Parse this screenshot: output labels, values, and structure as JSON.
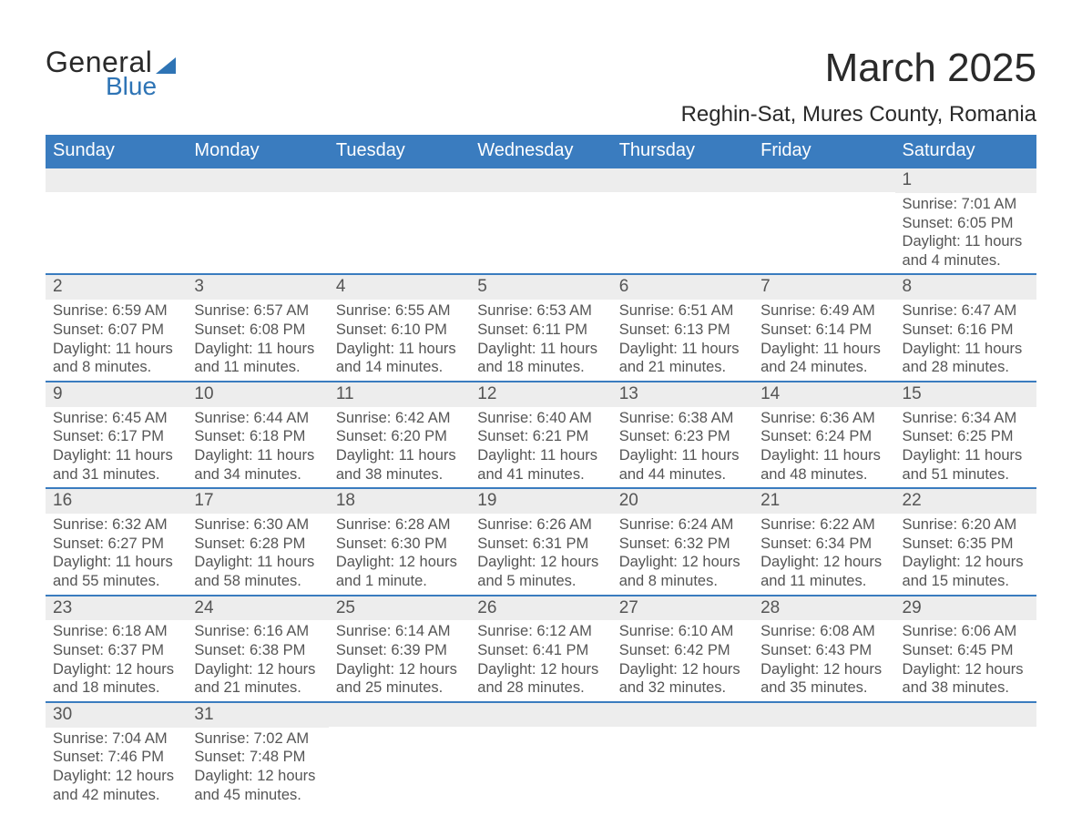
{
  "brand": {
    "word1": "General",
    "word2": "Blue",
    "accent_color": "#2e74b5"
  },
  "title": "March 2025",
  "location": "Reghin-Sat, Mures County, Romania",
  "colors": {
    "header_bg": "#3a7cbf",
    "header_text": "#ffffff",
    "daynum_bg": "#ededed",
    "body_text": "#555555",
    "row_divider": "#3a7cbf",
    "page_bg": "#ffffff"
  },
  "fonts": {
    "title_size_pt": 33,
    "location_size_pt": 18,
    "dayhead_size_pt": 15,
    "body_size_pt": 12.5
  },
  "day_headers": [
    "Sunday",
    "Monday",
    "Tuesday",
    "Wednesday",
    "Thursday",
    "Friday",
    "Saturday"
  ],
  "weeks": [
    [
      null,
      null,
      null,
      null,
      null,
      null,
      {
        "n": "1",
        "sunrise": "Sunrise: 7:01 AM",
        "sunset": "Sunset: 6:05 PM",
        "day1": "Daylight: 11 hours",
        "day2": "and 4 minutes."
      }
    ],
    [
      {
        "n": "2",
        "sunrise": "Sunrise: 6:59 AM",
        "sunset": "Sunset: 6:07 PM",
        "day1": "Daylight: 11 hours",
        "day2": "and 8 minutes."
      },
      {
        "n": "3",
        "sunrise": "Sunrise: 6:57 AM",
        "sunset": "Sunset: 6:08 PM",
        "day1": "Daylight: 11 hours",
        "day2": "and 11 minutes."
      },
      {
        "n": "4",
        "sunrise": "Sunrise: 6:55 AM",
        "sunset": "Sunset: 6:10 PM",
        "day1": "Daylight: 11 hours",
        "day2": "and 14 minutes."
      },
      {
        "n": "5",
        "sunrise": "Sunrise: 6:53 AM",
        "sunset": "Sunset: 6:11 PM",
        "day1": "Daylight: 11 hours",
        "day2": "and 18 minutes."
      },
      {
        "n": "6",
        "sunrise": "Sunrise: 6:51 AM",
        "sunset": "Sunset: 6:13 PM",
        "day1": "Daylight: 11 hours",
        "day2": "and 21 minutes."
      },
      {
        "n": "7",
        "sunrise": "Sunrise: 6:49 AM",
        "sunset": "Sunset: 6:14 PM",
        "day1": "Daylight: 11 hours",
        "day2": "and 24 minutes."
      },
      {
        "n": "8",
        "sunrise": "Sunrise: 6:47 AM",
        "sunset": "Sunset: 6:16 PM",
        "day1": "Daylight: 11 hours",
        "day2": "and 28 minutes."
      }
    ],
    [
      {
        "n": "9",
        "sunrise": "Sunrise: 6:45 AM",
        "sunset": "Sunset: 6:17 PM",
        "day1": "Daylight: 11 hours",
        "day2": "and 31 minutes."
      },
      {
        "n": "10",
        "sunrise": "Sunrise: 6:44 AM",
        "sunset": "Sunset: 6:18 PM",
        "day1": "Daylight: 11 hours",
        "day2": "and 34 minutes."
      },
      {
        "n": "11",
        "sunrise": "Sunrise: 6:42 AM",
        "sunset": "Sunset: 6:20 PM",
        "day1": "Daylight: 11 hours",
        "day2": "and 38 minutes."
      },
      {
        "n": "12",
        "sunrise": "Sunrise: 6:40 AM",
        "sunset": "Sunset: 6:21 PM",
        "day1": "Daylight: 11 hours",
        "day2": "and 41 minutes."
      },
      {
        "n": "13",
        "sunrise": "Sunrise: 6:38 AM",
        "sunset": "Sunset: 6:23 PM",
        "day1": "Daylight: 11 hours",
        "day2": "and 44 minutes."
      },
      {
        "n": "14",
        "sunrise": "Sunrise: 6:36 AM",
        "sunset": "Sunset: 6:24 PM",
        "day1": "Daylight: 11 hours",
        "day2": "and 48 minutes."
      },
      {
        "n": "15",
        "sunrise": "Sunrise: 6:34 AM",
        "sunset": "Sunset: 6:25 PM",
        "day1": "Daylight: 11 hours",
        "day2": "and 51 minutes."
      }
    ],
    [
      {
        "n": "16",
        "sunrise": "Sunrise: 6:32 AM",
        "sunset": "Sunset: 6:27 PM",
        "day1": "Daylight: 11 hours",
        "day2": "and 55 minutes."
      },
      {
        "n": "17",
        "sunrise": "Sunrise: 6:30 AM",
        "sunset": "Sunset: 6:28 PM",
        "day1": "Daylight: 11 hours",
        "day2": "and 58 minutes."
      },
      {
        "n": "18",
        "sunrise": "Sunrise: 6:28 AM",
        "sunset": "Sunset: 6:30 PM",
        "day1": "Daylight: 12 hours",
        "day2": "and 1 minute."
      },
      {
        "n": "19",
        "sunrise": "Sunrise: 6:26 AM",
        "sunset": "Sunset: 6:31 PM",
        "day1": "Daylight: 12 hours",
        "day2": "and 5 minutes."
      },
      {
        "n": "20",
        "sunrise": "Sunrise: 6:24 AM",
        "sunset": "Sunset: 6:32 PM",
        "day1": "Daylight: 12 hours",
        "day2": "and 8 minutes."
      },
      {
        "n": "21",
        "sunrise": "Sunrise: 6:22 AM",
        "sunset": "Sunset: 6:34 PM",
        "day1": "Daylight: 12 hours",
        "day2": "and 11 minutes."
      },
      {
        "n": "22",
        "sunrise": "Sunrise: 6:20 AM",
        "sunset": "Sunset: 6:35 PM",
        "day1": "Daylight: 12 hours",
        "day2": "and 15 minutes."
      }
    ],
    [
      {
        "n": "23",
        "sunrise": "Sunrise: 6:18 AM",
        "sunset": "Sunset: 6:37 PM",
        "day1": "Daylight: 12 hours",
        "day2": "and 18 minutes."
      },
      {
        "n": "24",
        "sunrise": "Sunrise: 6:16 AM",
        "sunset": "Sunset: 6:38 PM",
        "day1": "Daylight: 12 hours",
        "day2": "and 21 minutes."
      },
      {
        "n": "25",
        "sunrise": "Sunrise: 6:14 AM",
        "sunset": "Sunset: 6:39 PM",
        "day1": "Daylight: 12 hours",
        "day2": "and 25 minutes."
      },
      {
        "n": "26",
        "sunrise": "Sunrise: 6:12 AM",
        "sunset": "Sunset: 6:41 PM",
        "day1": "Daylight: 12 hours",
        "day2": "and 28 minutes."
      },
      {
        "n": "27",
        "sunrise": "Sunrise: 6:10 AM",
        "sunset": "Sunset: 6:42 PM",
        "day1": "Daylight: 12 hours",
        "day2": "and 32 minutes."
      },
      {
        "n": "28",
        "sunrise": "Sunrise: 6:08 AM",
        "sunset": "Sunset: 6:43 PM",
        "day1": "Daylight: 12 hours",
        "day2": "and 35 minutes."
      },
      {
        "n": "29",
        "sunrise": "Sunrise: 6:06 AM",
        "sunset": "Sunset: 6:45 PM",
        "day1": "Daylight: 12 hours",
        "day2": "and 38 minutes."
      }
    ],
    [
      {
        "n": "30",
        "sunrise": "Sunrise: 7:04 AM",
        "sunset": "Sunset: 7:46 PM",
        "day1": "Daylight: 12 hours",
        "day2": "and 42 minutes."
      },
      {
        "n": "31",
        "sunrise": "Sunrise: 7:02 AM",
        "sunset": "Sunset: 7:48 PM",
        "day1": "Daylight: 12 hours",
        "day2": "and 45 minutes."
      },
      null,
      null,
      null,
      null,
      null
    ]
  ]
}
